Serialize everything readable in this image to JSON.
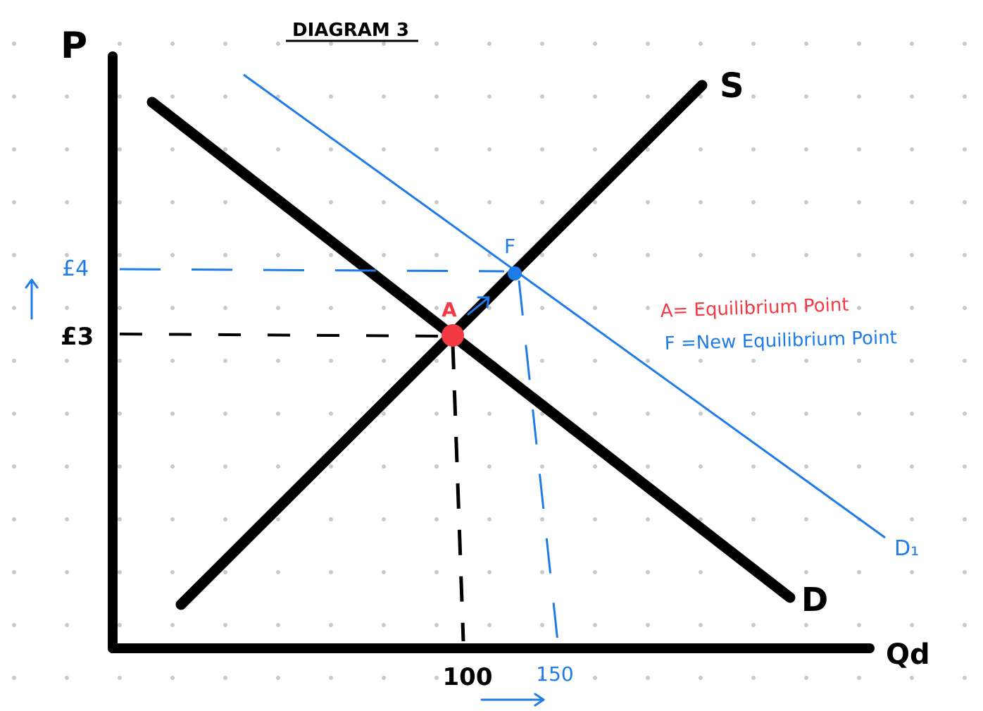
{
  "title": "DIAGRAM 3",
  "colors": {
    "black": "#000000",
    "blue": "#1e7be8",
    "red": "#f23a44",
    "dots": "#c9c9c9"
  },
  "axes": {
    "y_label": "P",
    "x_label": "Qd"
  },
  "curves": {
    "supply_label": "S",
    "demand_label": "D",
    "new_demand_label": "D₁"
  },
  "points": {
    "equilibrium_letter": "A",
    "new_equilibrium_letter": "F"
  },
  "ticks": {
    "price_old": "£3",
    "price_new": "£4",
    "qty_old": "100",
    "qty_new": "150"
  },
  "arrows": {
    "price_up": "↑",
    "qty_right": "→"
  },
  "legend": {
    "a_text": "A= Equilibrium Point",
    "f_text": "F =New Equilibrium Point"
  }
}
